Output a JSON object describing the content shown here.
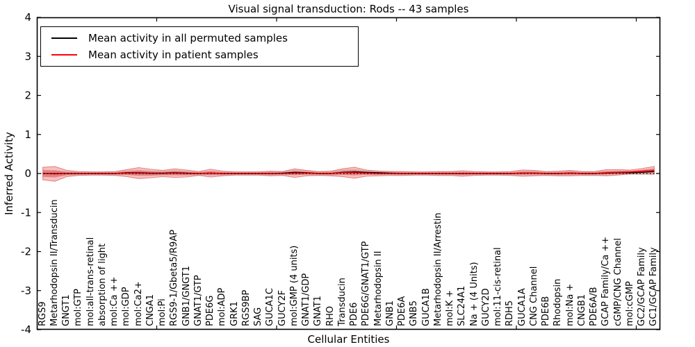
{
  "title": "Visual signal transduction: Rods -- 43 samples",
  "legend": [
    {
      "label": "Mean activity in all permuted samples",
      "color": "#000000"
    },
    {
      "label": "Mean activity in patient samples",
      "color": "#ff0000"
    }
  ],
  "chart_data": {
    "type": "line",
    "title": "Visual signal transduction: Rods -- 43 samples",
    "xlabel": "Cellular Entities",
    "ylabel": "Inferred Activity",
    "ylim": [
      -4,
      4
    ],
    "ytick_labels": [
      "4",
      "3",
      "2",
      "1",
      "0",
      "-1",
      "-2",
      "-3",
      "-4"
    ],
    "yticks": [
      4,
      3,
      2,
      1,
      0,
      -1,
      -2,
      -3,
      -4
    ],
    "secondary_xticks": [
      10,
      20,
      30,
      40,
      50
    ],
    "grid": false,
    "legend_position": "upper left",
    "zero_line_y": 0,
    "band_colors": {
      "permuted": "#999999",
      "patient": "#e84040"
    },
    "categories": [
      "RGS9",
      "Metarhodopsin II/Transducin",
      "GNGT1",
      "mol:GTP",
      "mol:all-trans-retinal",
      "absorption of light",
      "mol:Ca ++",
      "mol:GDP",
      "mol:Ca2+",
      "CNGA1",
      "mol:Pi",
      "RGS9-1/Gbeta5/R9AP",
      "GNB1/GNGT1",
      "GNAT1/GTP",
      "PDE6G",
      "mol:ADP",
      "GRK1",
      "RGS9BP",
      "SAG",
      "GUCA1C",
      "GUCY2F",
      "mol:GMP (4 units)",
      "GNAT1/GDP",
      "GNAT1",
      "RHO",
      "Transducin",
      "PDE6",
      "PDE6G/GNAT1/GTP",
      "Metarhodopsin II",
      "GNB1",
      "PDE6A",
      "GNB5",
      "GUCA1B",
      "Metarhodopsin II/Arrestin",
      "mol:K +",
      "SLC24A1",
      "Na + (4 Units)",
      "GUCY2D",
      "mol:11-cis-retinal",
      "RDH5",
      "GUCA1A",
      "CNG Channel",
      "PDE6B",
      "Rhodopsin",
      "mol:Na +",
      "CNGB1",
      "PDE6A/B",
      "GCAP Family/Ca ++",
      "cGMP/CNG Channel",
      "mol:cGMP",
      "GC2/GCAP Family",
      "GC1/GCAP Family"
    ],
    "series": [
      {
        "name": "Mean activity in all permuted samples",
        "color": "#000000",
        "values": [
          0,
          0,
          0,
          0,
          0,
          0,
          0,
          0.02,
          0.02,
          0.01,
          0.01,
          0.02,
          0.01,
          0,
          0.01,
          0,
          0,
          0,
          0,
          0,
          0.01,
          0.03,
          0.02,
          0,
          0,
          0.03,
          0.04,
          0.03,
          0.02,
          0.01,
          0,
          0,
          0,
          0,
          0,
          0,
          0,
          0,
          0,
          0,
          0.01,
          0.01,
          0,
          0,
          0.01,
          0,
          0,
          0.01,
          0.02,
          0.02,
          0.03,
          0.05
        ],
        "band": [
          0.1,
          0.08,
          0.06,
          0.055,
          0.055,
          0.055,
          0.055,
          0.06,
          0.07,
          0.065,
          0.06,
          0.065,
          0.06,
          0.055,
          0.06,
          0.055,
          0.055,
          0.055,
          0.055,
          0.055,
          0.055,
          0.065,
          0.06,
          0.055,
          0.055,
          0.07,
          0.07,
          0.06,
          0.055,
          0.055,
          0.055,
          0.055,
          0.055,
          0.055,
          0.055,
          0.06,
          0.055,
          0.055,
          0.055,
          0.055,
          0.06,
          0.06,
          0.055,
          0.055,
          0.06,
          0.055,
          0.055,
          0.06,
          0.06,
          0.055,
          0.06,
          0.07
        ]
      },
      {
        "name": "Mean activity in patient samples",
        "color": "#ff0000",
        "values": [
          0,
          -0.01,
          0,
          0,
          0,
          0,
          0,
          0.01,
          0.01,
          0,
          0,
          0.01,
          0,
          0,
          0.01,
          0,
          0,
          0,
          0,
          0,
          0,
          0.01,
          0.01,
          0,
          0,
          0.02,
          0.02,
          0.01,
          0,
          0,
          0,
          0,
          0,
          0,
          0,
          0,
          0,
          0,
          0,
          0,
          0.01,
          0.01,
          0,
          0,
          0.01,
          0,
          0,
          0.02,
          0.03,
          0.04,
          0.06,
          0.08
        ],
        "band": [
          0.16,
          0.19,
          0.08,
          0.05,
          0.04,
          0.04,
          0.05,
          0.09,
          0.14,
          0.11,
          0.08,
          0.11,
          0.09,
          0.05,
          0.1,
          0.06,
          0.04,
          0.04,
          0.04,
          0.06,
          0.05,
          0.11,
          0.07,
          0.05,
          0.06,
          0.1,
          0.14,
          0.08,
          0.06,
          0.05,
          0.05,
          0.04,
          0.04,
          0.05,
          0.05,
          0.07,
          0.05,
          0.04,
          0.04,
          0.05,
          0.08,
          0.07,
          0.05,
          0.06,
          0.07,
          0.05,
          0.05,
          0.08,
          0.07,
          0.05,
          0.07,
          0.1
        ]
      }
    ]
  }
}
